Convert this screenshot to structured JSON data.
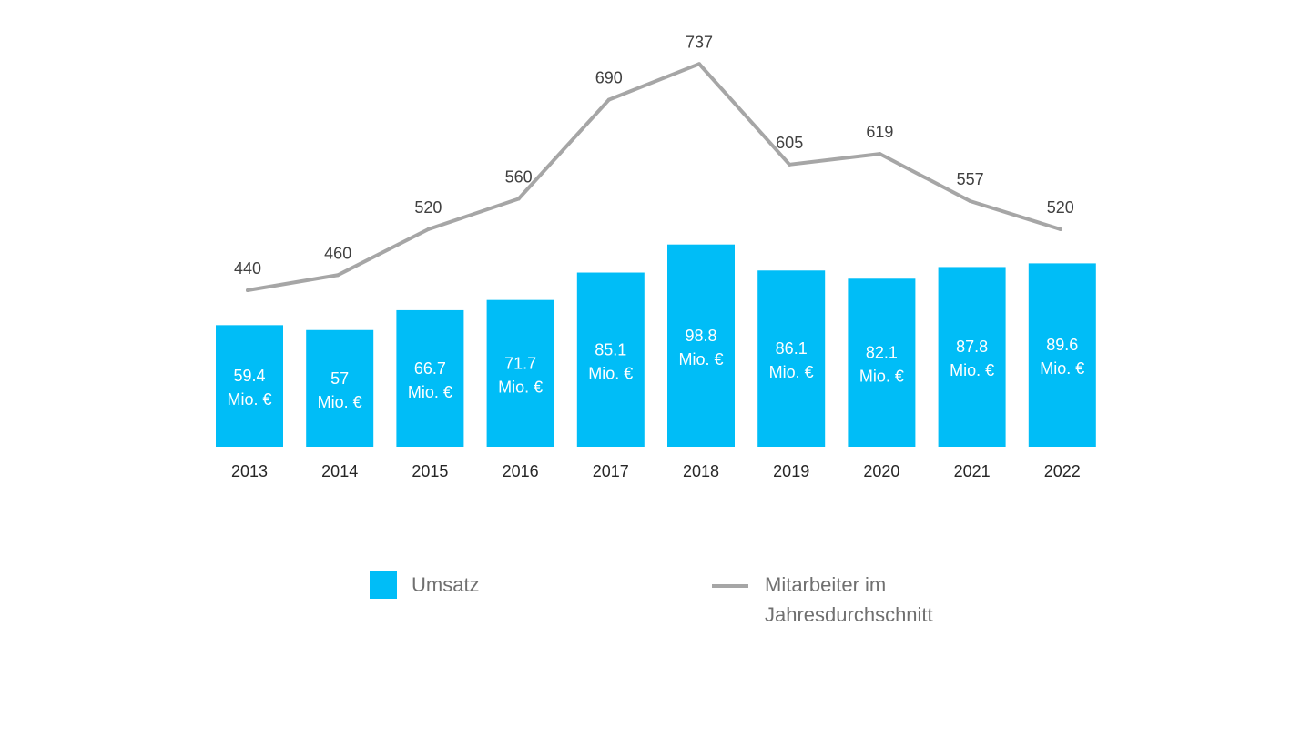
{
  "colors": {
    "bar": "#00BDF7",
    "line": "#A6A6A6",
    "bar_label": "#FFFFFF",
    "line_label": "#404040",
    "axis_label": "#262626",
    "legend_text": "#707070"
  },
  "chart_data": {
    "type": "bar",
    "categories": [
      "2013",
      "2014",
      "2015",
      "2016",
      "2017",
      "2018",
      "2019",
      "2020",
      "2021",
      "2022"
    ],
    "series": [
      {
        "name": "Umsatz",
        "type": "bar",
        "values": [
          59.4,
          57,
          66.7,
          71.7,
          85.1,
          98.8,
          86.1,
          82.1,
          87.8,
          89.6
        ],
        "labels": [
          [
            "59.4",
            "Mio. €"
          ],
          [
            "57",
            "Mio. €"
          ],
          [
            "66.7",
            "Mio. €"
          ],
          [
            "71.7",
            "Mio. €"
          ],
          [
            "85.1",
            "Mio. €"
          ],
          [
            "98.8",
            "Mio. €"
          ],
          [
            "86.1",
            "Mio. €"
          ],
          [
            "82.1",
            "Mio. €"
          ],
          [
            "87.8",
            "Mio. €"
          ],
          [
            "89.6",
            "Mio. €"
          ]
        ]
      },
      {
        "name": "Mitarbeiter im Jahresdurchschnitt",
        "type": "line",
        "values": [
          440,
          460,
          520,
          560,
          690,
          737,
          605,
          619,
          557,
          520
        ],
        "labels": [
          "440",
          "460",
          "520",
          "560",
          "690",
          "737",
          "605",
          "619",
          "557",
          "520"
        ]
      }
    ],
    "legend": {
      "position": "bottom",
      "items": [
        {
          "label": "Umsatz",
          "kind": "bar"
        },
        {
          "label": "Mitarbeiter im Jahresdurchschnitt",
          "kind": "line"
        }
      ]
    },
    "grid": false,
    "y_axis_visible": false
  }
}
